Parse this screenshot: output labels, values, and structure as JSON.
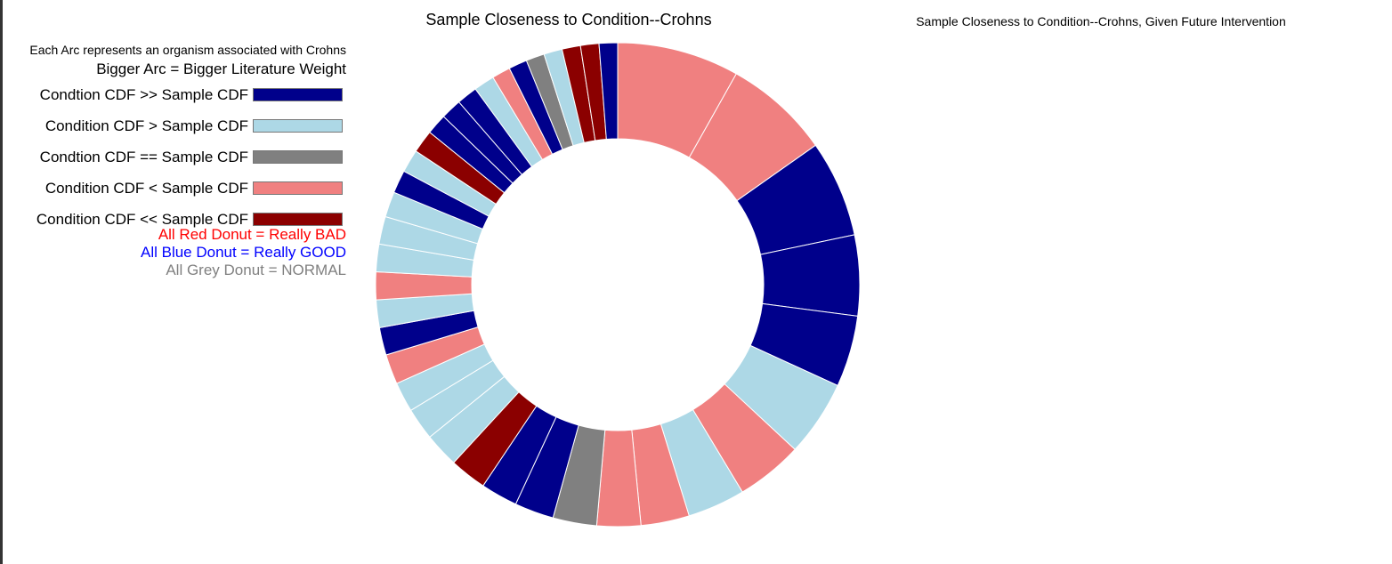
{
  "chart_data": {
    "type": "pie",
    "title": "Sample Closeness to Condition--Crohns",
    "subtitle": "Sample Closeness to Condition--Crohns, Given Future Intervention",
    "categories_colors": {
      "condition_much_greater": "#00008b",
      "condition_greater": "#add8e6",
      "condition_equal": "#808080",
      "condition_less": "#f08080",
      "condition_much_less": "#8b0000"
    },
    "slices": [
      {
        "category": "condition_less",
        "value": 26.5
      },
      {
        "category": "condition_less",
        "value": 23.0
      },
      {
        "category": "condition_much_greater",
        "value": 21.0
      },
      {
        "category": "condition_much_greater",
        "value": 17.5
      },
      {
        "category": "condition_much_greater",
        "value": 15.5
      },
      {
        "category": "condition_greater",
        "value": 16.5
      },
      {
        "category": "condition_less",
        "value": 14.5
      },
      {
        "category": "condition_greater",
        "value": 12.5
      },
      {
        "category": "condition_less",
        "value": 10.5
      },
      {
        "category": "condition_less",
        "value": 9.5
      },
      {
        "category": "condition_equal",
        "value": 9.5
      },
      {
        "category": "condition_much_greater",
        "value": 8.5
      },
      {
        "category": "condition_much_greater",
        "value": 8.0
      },
      {
        "category": "condition_much_less",
        "value": 8.0
      },
      {
        "category": "condition_greater",
        "value": 7.5
      },
      {
        "category": "condition_greater",
        "value": 7.0
      },
      {
        "category": "condition_greater",
        "value": 6.5
      },
      {
        "category": "condition_less",
        "value": 6.5
      },
      {
        "category": "condition_much_greater",
        "value": 6.0
      },
      {
        "category": "condition_greater",
        "value": 6.0
      },
      {
        "category": "condition_less",
        "value": 6.0
      },
      {
        "category": "condition_greater",
        "value": 6.0
      },
      {
        "category": "condition_greater",
        "value": 6.0
      },
      {
        "category": "condition_greater",
        "value": 5.5
      },
      {
        "category": "condition_much_greater",
        "value": 5.0
      },
      {
        "category": "condition_greater",
        "value": 5.0
      },
      {
        "category": "condition_much_less",
        "value": 5.0
      },
      {
        "category": "condition_much_greater",
        "value": 4.5
      },
      {
        "category": "condition_much_greater",
        "value": 4.5
      },
      {
        "category": "condition_much_greater",
        "value": 4.5
      },
      {
        "category": "condition_greater",
        "value": 4.5
      },
      {
        "category": "condition_less",
        "value": 4.0
      },
      {
        "category": "condition_much_greater",
        "value": 4.0
      },
      {
        "category": "condition_equal",
        "value": 4.0
      },
      {
        "category": "condition_greater",
        "value": 4.0
      },
      {
        "category": "condition_much_less",
        "value": 4.0
      },
      {
        "category": "condition_much_less",
        "value": 4.0
      },
      {
        "category": "condition_much_greater",
        "value": 4.0
      }
    ]
  },
  "legend": {
    "caption_line1": "Each Arc represents an organism associated with Crohns",
    "caption_line2": "Bigger Arc = Bigger Literature Weight",
    "entries": [
      {
        "label": "Condtion CDF >> Sample CDF",
        "color": "#00008b"
      },
      {
        "label": "Condition CDF > Sample CDF",
        "color": "#add8e6"
      },
      {
        "label": "Condtion CDF == Sample CDF",
        "color": "#808080"
      },
      {
        "label": "Condition CDF < Sample CDF",
        "color": "#f08080"
      },
      {
        "label": "Condition CDF << Sample CDF",
        "color": "#8b0000"
      }
    ],
    "notes": [
      {
        "text": "All Red Donut = Really BAD",
        "color": "#ff0000"
      },
      {
        "text": "All Blue Donut = Really GOOD",
        "color": "#0000ff"
      },
      {
        "text": "All Grey Donut = NORMAL",
        "color": "#808080"
      }
    ]
  }
}
